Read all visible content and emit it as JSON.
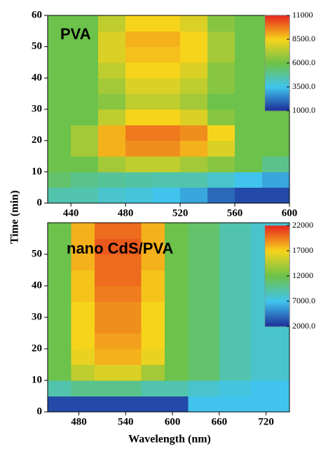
{
  "chart_data": [
    {
      "type": "heatmap",
      "annotation": "PVA",
      "ylabel": "Time (min)",
      "x": [
        423,
        440,
        460,
        480,
        500,
        520,
        540,
        560,
        580,
        600
      ],
      "y": [
        0,
        5,
        10,
        15,
        20,
        25,
        30,
        35,
        40,
        45,
        50,
        55,
        60
      ],
      "z": [
        [
          4500,
          4500,
          4000,
          3800,
          3500,
          3000,
          2000,
          1500,
          1500
        ],
        [
          5500,
          5000,
          4800,
          4600,
          4500,
          4500,
          4000,
          3500,
          3000
        ],
        [
          6000,
          6000,
          7000,
          7500,
          7500,
          7000,
          6500,
          6000,
          5000
        ],
        [
          6000,
          7000,
          9000,
          9500,
          9500,
          9000,
          8000,
          6000,
          6000
        ],
        [
          6000,
          7000,
          9000,
          9800,
          9800,
          9500,
          8500,
          6000,
          6000
        ],
        [
          6000,
          6000,
          7500,
          8500,
          8500,
          8000,
          6500,
          6000,
          6000
        ],
        [
          6000,
          6000,
          6500,
          7500,
          7500,
          7000,
          6000,
          6000,
          6000
        ],
        [
          6000,
          6000,
          7000,
          8000,
          8000,
          7500,
          6500,
          6000,
          6000
        ],
        [
          6000,
          6000,
          7500,
          8500,
          8500,
          8000,
          6500,
          6000,
          6000
        ],
        [
          6000,
          6000,
          8000,
          8800,
          8800,
          8500,
          7000,
          6000,
          6000
        ],
        [
          6000,
          6000,
          8000,
          9000,
          9000,
          8500,
          7000,
          6000,
          6000
        ],
        [
          6000,
          6000,
          7500,
          8500,
          8500,
          8000,
          6500,
          6000,
          6000
        ]
      ],
      "xlim": [
        423,
        600
      ],
      "xticks": [
        440,
        480,
        520,
        560,
        600
      ],
      "ylim": [
        0,
        60
      ],
      "yticks": [
        0,
        10,
        20,
        30,
        40,
        50,
        60
      ],
      "zlim": [
        1000,
        11000
      ],
      "zticks": [
        11000,
        {
          "value": 8500,
          "label": "8500.0"
        },
        {
          "value": 6000,
          "label": "6000.0"
        },
        {
          "value": 3500,
          "label": "3500.0"
        },
        {
          "value": 1000,
          "label": "1000.0"
        }
      ],
      "colors": [
        "#1c2c96",
        "#40c4ee",
        "#6cc24a",
        "#f7d41c",
        "#e6261e"
      ]
    },
    {
      "type": "heatmap",
      "annotation": "nano CdS/PVA",
      "xlabel": "Wavelength (nm)",
      "x": [
        440,
        470,
        500,
        530,
        560,
        590,
        620,
        660,
        700,
        750
      ],
      "y": [
        0,
        5,
        10,
        15,
        20,
        25,
        30,
        35,
        40,
        45,
        50,
        55,
        60
      ],
      "z": [
        [
          3000,
          3000,
          3000,
          3000,
          3000,
          3000,
          7000,
          7000,
          7000
        ],
        [
          9000,
          10000,
          10000,
          10000,
          9000,
          9000,
          8000,
          7500,
          7000
        ],
        [
          12000,
          15000,
          16000,
          16000,
          14000,
          12000,
          11000,
          9000,
          8000
        ],
        [
          12000,
          16500,
          18000,
          18000,
          16500,
          12000,
          11000,
          9000,
          8000
        ],
        [
          12000,
          17000,
          18500,
          18500,
          17000,
          12000,
          11000,
          9000,
          8000
        ],
        [
          12000,
          17000,
          19000,
          19000,
          17000,
          12000,
          11000,
          9000,
          8000
        ],
        [
          12000,
          17000,
          19000,
          19000,
          17000,
          12000,
          11000,
          9000,
          8000
        ],
        [
          12000,
          17500,
          19500,
          19500,
          17500,
          12000,
          11000,
          9000,
          8000
        ],
        [
          12000,
          17500,
          20000,
          20000,
          17500,
          12000,
          11000,
          9000,
          8000
        ],
        [
          12000,
          18000,
          20000,
          20000,
          18000,
          12000,
          11000,
          9000,
          8000
        ],
        [
          12000,
          18000,
          20500,
          20500,
          18000,
          12000,
          11000,
          9000,
          8000
        ],
        [
          12000,
          18000,
          20000,
          20000,
          18000,
          12000,
          11000,
          9000,
          8000
        ]
      ],
      "xlim": [
        440,
        750
      ],
      "xticks": [
        480,
        540,
        600,
        660,
        720
      ],
      "ylim": [
        0,
        60
      ],
      "yticks": [
        0,
        10,
        20,
        30,
        40,
        50
      ],
      "zlim": [
        2000,
        22000
      ],
      "zticks": [
        22000,
        17000,
        12000,
        {
          "value": 7000,
          "label": "7000.0"
        },
        {
          "value": 2000,
          "label": "2000.0"
        }
      ],
      "colors": [
        "#1c2c96",
        "#40c4ee",
        "#6cc24a",
        "#f7d41c",
        "#e6261e"
      ]
    }
  ]
}
